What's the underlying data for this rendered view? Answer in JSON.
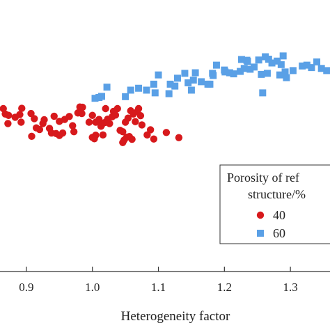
{
  "chart_data": {
    "type": "scatter",
    "xlabel": "Heterogeneity factor",
    "ylabel": "",
    "xlim": [
      0.86,
      1.36
    ],
    "ylim": [
      0,
      1
    ],
    "x_ticks": [
      "0.9",
      "1.0",
      "1.1",
      "1.2",
      "1.3"
    ],
    "grid": false,
    "legend": {
      "title": "Porosity of ref structure/%",
      "title_line1": "Porosity of ref",
      "title_line2": "structure/%",
      "placement": "bottom-right"
    },
    "series": [
      {
        "name": "40",
        "marker": "circle",
        "color": "#d7191c",
        "points": [
          [
            0.865,
            0.6
          ],
          [
            0.868,
            0.58
          ],
          [
            0.873,
            0.575
          ],
          [
            0.872,
            0.545
          ],
          [
            0.883,
            0.568
          ],
          [
            0.89,
            0.578
          ],
          [
            0.893,
            0.601
          ],
          [
            0.907,
            0.582
          ],
          [
            0.915,
            0.529
          ],
          [
            0.92,
            0.523
          ],
          [
            0.912,
            0.563
          ],
          [
            0.927,
            0.559
          ],
          [
            0.935,
            0.527
          ],
          [
            0.942,
            0.572
          ],
          [
            0.938,
            0.51
          ],
          [
            0.945,
            0.508
          ],
          [
            0.955,
            0.51
          ],
          [
            0.958,
            0.56
          ],
          [
            0.965,
            0.571
          ],
          [
            0.97,
            0.537
          ],
          [
            0.972,
            0.515
          ],
          [
            0.978,
            0.584
          ],
          [
            0.981,
            0.606
          ],
          [
            0.982,
            0.598
          ],
          [
            0.984,
            0.582
          ],
          [
            0.985,
            0.605
          ],
          [
            0.995,
            0.55
          ],
          [
            1.0,
            0.575
          ],
          [
            1.005,
            0.55
          ],
          [
            1.01,
            0.56
          ],
          [
            1.013,
            0.535
          ],
          [
            1.014,
            0.54
          ],
          [
            1.016,
            0.503
          ],
          [
            1.019,
            0.549
          ],
          [
            1.02,
            0.6
          ],
          [
            1.023,
            0.561
          ],
          [
            1.026,
            0.545
          ],
          [
            1.03,
            0.57
          ],
          [
            1.032,
            0.59
          ],
          [
            1.035,
            0.576
          ],
          [
            1.038,
            0.6
          ],
          [
            1.042,
            0.52
          ],
          [
            1.046,
            0.515
          ],
          [
            1.05,
            0.55
          ],
          [
            1.054,
            0.565
          ],
          [
            1.058,
            0.592
          ],
          [
            1.062,
            0.58
          ],
          [
            1.065,
            0.552
          ],
          [
            1.068,
            0.589
          ],
          [
            1.07,
            0.6
          ],
          [
            1.073,
            0.574
          ],
          [
            1.075,
            0.54
          ],
          [
            1.083,
            0.503
          ],
          [
            1.088,
            0.522
          ],
          [
            1.093,
            0.488
          ],
          [
            1.112,
            0.512
          ],
          [
            1.131,
            0.493
          ],
          [
            1.056,
            0.497
          ],
          [
            1.06,
            0.487
          ],
          [
            1.052,
            0.495
          ],
          [
            1.048,
            0.484
          ],
          [
            1.046,
            0.475
          ],
          [
            1.0,
            0.494
          ],
          [
            1.005,
            0.502
          ],
          [
            1.003,
            0.489
          ],
          [
            0.95,
            0.501
          ],
          [
            0.908,
            0.498
          ],
          [
            0.925,
            0.545
          ],
          [
            0.95,
            0.553
          ],
          [
            0.892,
            0.55
          ]
        ]
      },
      {
        "name": "60",
        "marker": "square",
        "color": "#5aa0e6",
        "points": [
          [
            1.004,
            0.638
          ],
          [
            1.01,
            0.641
          ],
          [
            1.014,
            0.645
          ],
          [
            1.022,
            0.679
          ],
          [
            1.05,
            0.644
          ],
          [
            1.058,
            0.668
          ],
          [
            1.07,
            0.675
          ],
          [
            1.082,
            0.668
          ],
          [
            1.093,
            0.69
          ],
          [
            1.095,
            0.658
          ],
          [
            1.116,
            0.655
          ],
          [
            1.118,
            0.69
          ],
          [
            1.125,
            0.683
          ],
          [
            1.129,
            0.712
          ],
          [
            1.145,
            0.695
          ],
          [
            1.15,
            0.668
          ],
          [
            1.153,
            0.705
          ],
          [
            1.156,
            0.732
          ],
          [
            1.165,
            0.699
          ],
          [
            1.175,
            0.69
          ],
          [
            1.178,
            0.69
          ],
          [
            1.182,
            0.73
          ],
          [
            1.188,
            0.76
          ],
          [
            1.201,
            0.735
          ],
          [
            1.208,
            0.732
          ],
          [
            1.214,
            0.728
          ],
          [
            1.226,
            0.781
          ],
          [
            1.234,
            0.778
          ],
          [
            1.239,
            0.745
          ],
          [
            1.245,
            0.753
          ],
          [
            1.252,
            0.779
          ],
          [
            1.256,
            0.726
          ],
          [
            1.262,
            0.791
          ],
          [
            1.265,
            0.73
          ],
          [
            1.267,
            0.782
          ],
          [
            1.272,
            0.768
          ],
          [
            1.28,
            0.775
          ],
          [
            1.284,
            0.724
          ],
          [
            1.286,
            0.762
          ],
          [
            1.289,
            0.794
          ],
          [
            1.294,
            0.714
          ],
          [
            1.304,
            0.74
          ],
          [
            1.318,
            0.757
          ],
          [
            1.325,
            0.76
          ],
          [
            1.332,
            0.751
          ],
          [
            1.34,
            0.772
          ],
          [
            1.347,
            0.748
          ],
          [
            1.355,
            0.74
          ],
          [
            1.224,
            0.737
          ],
          [
            1.23,
            0.748
          ],
          [
            1.235,
            0.774
          ],
          [
            1.2,
            0.742
          ],
          [
            1.183,
            0.722
          ],
          [
            1.14,
            0.73
          ],
          [
            1.1,
            0.724
          ],
          [
            1.258,
            0.658
          ],
          [
            1.292,
            0.735
          ]
        ]
      }
    ]
  }
}
